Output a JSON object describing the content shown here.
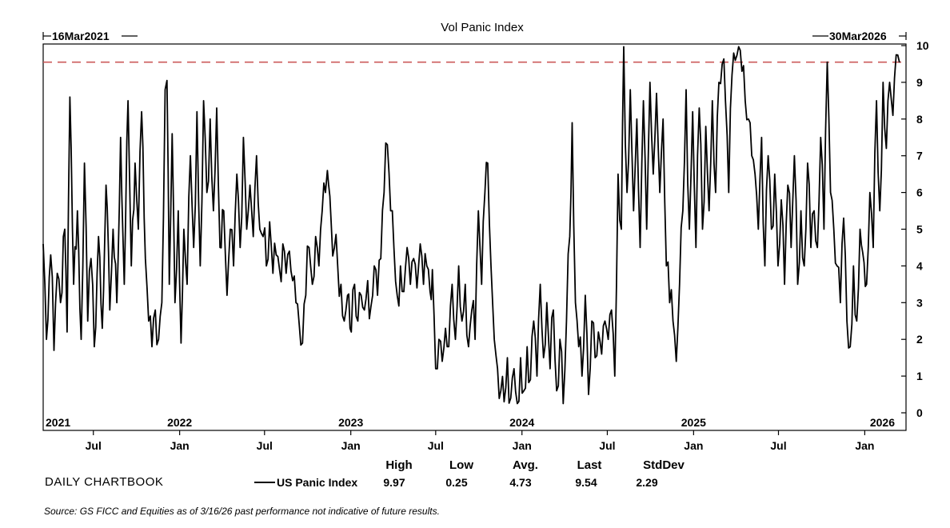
{
  "chart_data": {
    "type": "line",
    "title": "Vol Panic Index",
    "start_label": "16Mar2021",
    "end_label": "30Mar2026",
    "x_start": "2021-03-16",
    "x_end": "2026-03-30",
    "ylim": [
      0,
      10
    ],
    "yticks": [
      0,
      1,
      2,
      3,
      4,
      5,
      6,
      7,
      8,
      9,
      10
    ],
    "y_axis_side": "right",
    "reference_line": {
      "y": 9.55,
      "style": "dashed",
      "color": "#cc5a5a"
    },
    "year_labels": [
      {
        "label": "2021",
        "date": "2021-03-16"
      },
      {
        "label": "2022",
        "date": "2022-01-01"
      },
      {
        "label": "2023",
        "date": "2023-01-01"
      },
      {
        "label": "2024",
        "date": "2024-01-01"
      },
      {
        "label": "2025",
        "date": "2025-01-01"
      },
      {
        "label": "2026",
        "date": "2026-01-01"
      }
    ],
    "month_ticks": [
      {
        "label": "Jul",
        "date": "2021-07-01"
      },
      {
        "label": "Jan",
        "date": "2022-01-01"
      },
      {
        "label": "Jul",
        "date": "2022-07-01"
      },
      {
        "label": "Jan",
        "date": "2023-01-01"
      },
      {
        "label": "Jul",
        "date": "2023-07-01"
      },
      {
        "label": "Jan",
        "date": "2024-01-01"
      },
      {
        "label": "Jul",
        "date": "2024-07-01"
      },
      {
        "label": "Jan",
        "date": "2025-01-01"
      },
      {
        "label": "Jul",
        "date": "2025-07-01"
      },
      {
        "label": "Jan",
        "date": "2026-01-01"
      }
    ],
    "series": [
      {
        "name": "US Panic Index",
        "color": "#000000",
        "points": [
          [
            "2021-03-16",
            4.6
          ],
          [
            "2021-03-23",
            2.0
          ],
          [
            "2021-04-01",
            4.3
          ],
          [
            "2021-04-08",
            1.7
          ],
          [
            "2021-04-15",
            3.8
          ],
          [
            "2021-04-22",
            3.0
          ],
          [
            "2021-05-01",
            5.0
          ],
          [
            "2021-05-06",
            2.2
          ],
          [
            "2021-05-12",
            8.6
          ],
          [
            "2021-05-20",
            3.5
          ],
          [
            "2021-05-28",
            5.5
          ],
          [
            "2021-06-05",
            2.0
          ],
          [
            "2021-06-12",
            6.8
          ],
          [
            "2021-06-19",
            2.5
          ],
          [
            "2021-06-26",
            4.2
          ],
          [
            "2021-07-03",
            1.8
          ],
          [
            "2021-07-12",
            4.8
          ],
          [
            "2021-07-20",
            2.3
          ],
          [
            "2021-07-28",
            6.2
          ],
          [
            "2021-08-05",
            2.8
          ],
          [
            "2021-08-12",
            5.0
          ],
          [
            "2021-08-20",
            3.0
          ],
          [
            "2021-08-28",
            7.5
          ],
          [
            "2021-09-05",
            3.5
          ],
          [
            "2021-09-13",
            8.5
          ],
          [
            "2021-09-20",
            4.0
          ],
          [
            "2021-09-28",
            6.8
          ],
          [
            "2021-10-05",
            5.0
          ],
          [
            "2021-10-12",
            8.2
          ],
          [
            "2021-10-20",
            4.2
          ],
          [
            "2021-10-27",
            2.5
          ],
          [
            "2021-11-03",
            1.8
          ],
          [
            "2021-11-10",
            2.8
          ],
          [
            "2021-11-17",
            2.0
          ],
          [
            "2021-11-24",
            3.0
          ],
          [
            "2021-12-01",
            8.8
          ],
          [
            "2021-12-05",
            9.05
          ],
          [
            "2021-12-10",
            3.5
          ],
          [
            "2021-12-16",
            7.6
          ],
          [
            "2021-12-22",
            3.0
          ],
          [
            "2021-12-29",
            5.5
          ],
          [
            "2022-01-04",
            1.9
          ],
          [
            "2022-01-10",
            5.0
          ],
          [
            "2022-01-17",
            3.5
          ],
          [
            "2022-01-24",
            7.0
          ],
          [
            "2022-01-31",
            4.5
          ],
          [
            "2022-02-07",
            8.2
          ],
          [
            "2022-02-14",
            4.0
          ],
          [
            "2022-02-21",
            8.5
          ],
          [
            "2022-02-28",
            6.0
          ],
          [
            "2022-03-07",
            8.0
          ],
          [
            "2022-03-14",
            5.5
          ],
          [
            "2022-03-21",
            8.3
          ],
          [
            "2022-03-28",
            4.5
          ],
          [
            "2022-04-05",
            5.5
          ],
          [
            "2022-04-12",
            3.2
          ],
          [
            "2022-04-19",
            5.0
          ],
          [
            "2022-04-26",
            4.0
          ],
          [
            "2022-05-03",
            6.5
          ],
          [
            "2022-05-10",
            4.5
          ],
          [
            "2022-05-17",
            7.5
          ],
          [
            "2022-05-24",
            5.0
          ],
          [
            "2022-05-31",
            6.2
          ],
          [
            "2022-06-07",
            4.8
          ],
          [
            "2022-06-14",
            7.0
          ],
          [
            "2022-06-21",
            5.0
          ],
          [
            "2022-06-28",
            4.8
          ],
          [
            "2022-07-05",
            4.0
          ],
          [
            "2022-07-12",
            5.2
          ],
          [
            "2022-07-19",
            3.8
          ],
          [
            "2022-07-26",
            4.3
          ],
          [
            "2022-08-02",
            3.9
          ],
          [
            "2022-08-09",
            4.6
          ],
          [
            "2022-08-16",
            3.8
          ],
          [
            "2022-08-23",
            4.4
          ],
          [
            "2022-08-30",
            3.6
          ],
          [
            "2022-09-06",
            3.0
          ],
          [
            "2022-09-13",
            2.4
          ],
          [
            "2022-09-20",
            1.9
          ],
          [
            "2022-09-27",
            3.2
          ],
          [
            "2022-10-04",
            4.5
          ],
          [
            "2022-10-11",
            3.5
          ],
          [
            "2022-10-18",
            4.8
          ],
          [
            "2022-10-25",
            4.0
          ],
          [
            "2022-11-01",
            5.5
          ],
          [
            "2022-11-08",
            6.0
          ],
          [
            "2022-11-12",
            6.6
          ],
          [
            "2022-11-20",
            5.2
          ],
          [
            "2022-11-27",
            4.5
          ],
          [
            "2022-12-04",
            4.0
          ],
          [
            "2022-12-11",
            3.5
          ],
          [
            "2022-12-18",
            2.5
          ],
          [
            "2022-12-25",
            3.2
          ],
          [
            "2023-01-02",
            2.2
          ],
          [
            "2023-01-09",
            3.5
          ],
          [
            "2023-01-16",
            2.5
          ],
          [
            "2023-01-23",
            3.2
          ],
          [
            "2023-01-30",
            2.8
          ],
          [
            "2023-02-06",
            3.6
          ],
          [
            "2023-02-13",
            2.9
          ],
          [
            "2023-02-20",
            4.0
          ],
          [
            "2023-02-27",
            3.2
          ],
          [
            "2023-03-06",
            4.2
          ],
          [
            "2023-03-13",
            6.0
          ],
          [
            "2023-03-20",
            7.3
          ],
          [
            "2023-03-27",
            5.5
          ],
          [
            "2023-04-03",
            4.5
          ],
          [
            "2023-04-10",
            3.2
          ],
          [
            "2023-04-17",
            4.0
          ],
          [
            "2023-04-24",
            3.3
          ],
          [
            "2023-05-01",
            4.5
          ],
          [
            "2023-05-08",
            3.5
          ],
          [
            "2023-05-15",
            4.2
          ],
          [
            "2023-05-22",
            3.4
          ],
          [
            "2023-05-29",
            4.6
          ],
          [
            "2023-06-05",
            3.5
          ],
          [
            "2023-06-12",
            4.0
          ],
          [
            "2023-06-19",
            3.3
          ],
          [
            "2023-06-24",
            3.9
          ],
          [
            "2023-07-01",
            1.2
          ],
          [
            "2023-07-08",
            2.0
          ],
          [
            "2023-07-15",
            1.4
          ],
          [
            "2023-07-22",
            2.3
          ],
          [
            "2023-07-29",
            1.8
          ],
          [
            "2023-08-05",
            3.5
          ],
          [
            "2023-08-12",
            2.0
          ],
          [
            "2023-08-19",
            4.0
          ],
          [
            "2023-08-26",
            2.5
          ],
          [
            "2023-09-02",
            3.5
          ],
          [
            "2023-09-09",
            1.8
          ],
          [
            "2023-09-16",
            2.8
          ],
          [
            "2023-09-23",
            2.0
          ],
          [
            "2023-09-30",
            5.5
          ],
          [
            "2023-10-07",
            3.5
          ],
          [
            "2023-10-14",
            6.0
          ],
          [
            "2023-10-20",
            6.8
          ],
          [
            "2023-10-27",
            4.0
          ],
          [
            "2023-11-03",
            2.0
          ],
          [
            "2023-11-10",
            1.2
          ],
          [
            "2023-11-17",
            0.6
          ],
          [
            "2023-11-24",
            0.3
          ],
          [
            "2023-12-01",
            1.5
          ],
          [
            "2023-12-08",
            0.4
          ],
          [
            "2023-12-15",
            1.2
          ],
          [
            "2023-12-22",
            0.25
          ],
          [
            "2023-12-29",
            1.5
          ],
          [
            "2024-01-05",
            0.6
          ],
          [
            "2024-01-12",
            1.8
          ],
          [
            "2024-01-19",
            0.9
          ],
          [
            "2024-01-26",
            2.5
          ],
          [
            "2024-02-02",
            1.0
          ],
          [
            "2024-02-09",
            3.5
          ],
          [
            "2024-02-16",
            1.5
          ],
          [
            "2024-02-23",
            3.0
          ],
          [
            "2024-03-01",
            1.2
          ],
          [
            "2024-03-08",
            2.8
          ],
          [
            "2024-03-15",
            0.6
          ],
          [
            "2024-03-22",
            2.0
          ],
          [
            "2024-03-29",
            0.25
          ],
          [
            "2024-04-05",
            2.5
          ],
          [
            "2024-04-12",
            4.8
          ],
          [
            "2024-04-17",
            7.9
          ],
          [
            "2024-04-24",
            3.0
          ],
          [
            "2024-05-01",
            1.8
          ],
          [
            "2024-05-08",
            1.0
          ],
          [
            "2024-05-15",
            3.2
          ],
          [
            "2024-05-22",
            0.5
          ],
          [
            "2024-05-29",
            2.5
          ],
          [
            "2024-06-05",
            1.5
          ],
          [
            "2024-06-12",
            2.2
          ],
          [
            "2024-06-19",
            1.6
          ],
          [
            "2024-06-26",
            2.5
          ],
          [
            "2024-07-03",
            2.0
          ],
          [
            "2024-07-10",
            2.8
          ],
          [
            "2024-07-17",
            1.0
          ],
          [
            "2024-07-24",
            6.5
          ],
          [
            "2024-07-31",
            5.0
          ],
          [
            "2024-08-05",
            9.97
          ],
          [
            "2024-08-12",
            6.0
          ],
          [
            "2024-08-19",
            8.8
          ],
          [
            "2024-08-26",
            5.5
          ],
          [
            "2024-09-02",
            8.0
          ],
          [
            "2024-09-09",
            4.5
          ],
          [
            "2024-09-16",
            8.5
          ],
          [
            "2024-09-23",
            5.0
          ],
          [
            "2024-09-30",
            9.0
          ],
          [
            "2024-10-07",
            6.5
          ],
          [
            "2024-10-14",
            8.7
          ],
          [
            "2024-10-21",
            6.0
          ],
          [
            "2024-10-28",
            8.0
          ],
          [
            "2024-11-04",
            4.0
          ],
          [
            "2024-11-11",
            3.0
          ],
          [
            "2024-11-18",
            2.5
          ],
          [
            "2024-11-25",
            1.4
          ],
          [
            "2024-12-02",
            3.5
          ],
          [
            "2024-12-09",
            5.5
          ],
          [
            "2024-12-16",
            8.8
          ],
          [
            "2024-12-23",
            5.0
          ],
          [
            "2024-12-30",
            8.2
          ],
          [
            "2025-01-06",
            4.5
          ],
          [
            "2025-01-13",
            8.3
          ],
          [
            "2025-01-20",
            5.0
          ],
          [
            "2025-01-27",
            7.8
          ],
          [
            "2025-02-03",
            5.5
          ],
          [
            "2025-02-10",
            8.5
          ],
          [
            "2025-02-17",
            6.0
          ],
          [
            "2025-02-24",
            9.0
          ],
          [
            "2025-03-03",
            9.5
          ],
          [
            "2025-03-10",
            8.5
          ],
          [
            "2025-03-17",
            6.0
          ],
          [
            "2025-03-24",
            9.2
          ],
          [
            "2025-03-31",
            9.6
          ],
          [
            "2025-04-07",
            9.97
          ],
          [
            "2025-04-14",
            9.3
          ],
          [
            "2025-04-21",
            8.5
          ],
          [
            "2025-04-28",
            8.0
          ],
          [
            "2025-05-05",
            7.0
          ],
          [
            "2025-05-12",
            6.5
          ],
          [
            "2025-05-19",
            5.0
          ],
          [
            "2025-05-26",
            7.5
          ],
          [
            "2025-06-02",
            4.0
          ],
          [
            "2025-06-09",
            7.0
          ],
          [
            "2025-06-16",
            5.0
          ],
          [
            "2025-06-23",
            6.5
          ],
          [
            "2025-06-30",
            4.0
          ],
          [
            "2025-07-07",
            5.8
          ],
          [
            "2025-07-14",
            3.5
          ],
          [
            "2025-07-21",
            6.2
          ],
          [
            "2025-07-28",
            4.5
          ],
          [
            "2025-08-04",
            7.0
          ],
          [
            "2025-08-11",
            3.5
          ],
          [
            "2025-08-18",
            5.5
          ],
          [
            "2025-08-25",
            4.0
          ],
          [
            "2025-09-01",
            6.8
          ],
          [
            "2025-09-08",
            4.5
          ],
          [
            "2025-09-15",
            5.5
          ],
          [
            "2025-09-22",
            4.5
          ],
          [
            "2025-09-29",
            7.5
          ],
          [
            "2025-10-06",
            5.0
          ],
          [
            "2025-10-13",
            9.55
          ],
          [
            "2025-10-20",
            6.0
          ],
          [
            "2025-10-27",
            5.0
          ],
          [
            "2025-11-03",
            4.0
          ],
          [
            "2025-11-10",
            3.0
          ],
          [
            "2025-11-17",
            5.3
          ],
          [
            "2025-11-24",
            2.5
          ],
          [
            "2025-12-01",
            1.8
          ],
          [
            "2025-12-08",
            4.0
          ],
          [
            "2025-12-15",
            2.5
          ],
          [
            "2025-12-22",
            5.0
          ],
          [
            "2026-01-05",
            3.5
          ],
          [
            "2026-01-12",
            6.0
          ],
          [
            "2026-01-19",
            4.5
          ],
          [
            "2026-01-26",
            8.5
          ],
          [
            "2026-02-02",
            5.5
          ],
          [
            "2026-02-09",
            9.0
          ],
          [
            "2026-02-16",
            7.2
          ],
          [
            "2026-02-23",
            9.0
          ],
          [
            "2026-03-02",
            8.1
          ],
          [
            "2026-03-09",
            9.75
          ],
          [
            "2026-03-16",
            9.54
          ]
        ]
      }
    ],
    "stats": {
      "headers": [
        "High",
        "Low",
        "Avg.",
        "Last",
        "StdDev"
      ],
      "values": [
        "9.97",
        "0.25",
        "4.73",
        "9.54",
        "2.29"
      ]
    }
  },
  "legend": {
    "series_label": "US Panic Index"
  },
  "branding": "DAILY CHARTBOOK",
  "source": "Source: GS FICC and Equities as of 3/16/26 past performance not indicative of future results."
}
